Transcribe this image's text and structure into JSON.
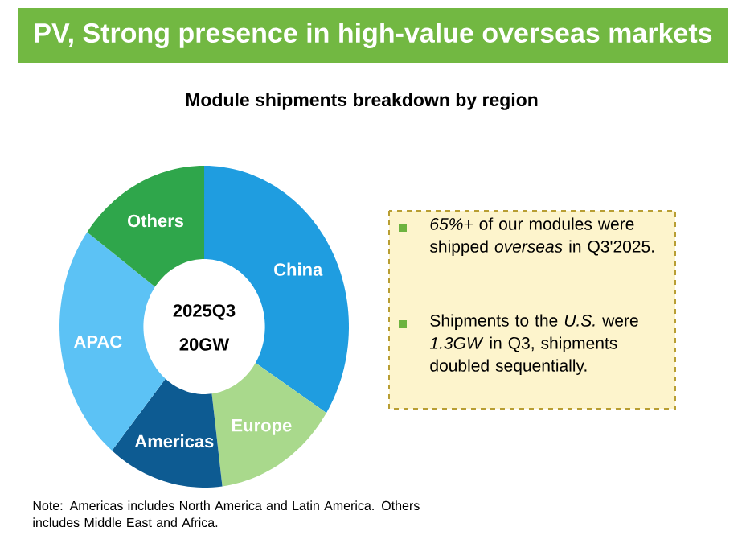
{
  "chart_data": {
    "type": "donut",
    "title": "PV, Strong presence in high-value overseas markets",
    "subtitle": "Module shipments breakdown by region",
    "categories": [
      "China",
      "Europe",
      "Americas",
      "APAC",
      "Others"
    ],
    "values": [
      34,
      14,
      13,
      24,
      15
    ],
    "colors": [
      "#1f9de0",
      "#a9d98c",
      "#0d5b92",
      "#5cc2f5",
      "#2fa64b"
    ],
    "annotations": [
      "2025Q3",
      "20GW",
      "*65%+* of our modules were shipped *overseas* in Q3'2025.",
      "Shipments to the *U.S.* were *1.3GW* in Q3, shipments doubled sequentially.",
      "Note: Americas includes North America and Latin America. Others includes Middle East and Africa."
    ]
  }
}
